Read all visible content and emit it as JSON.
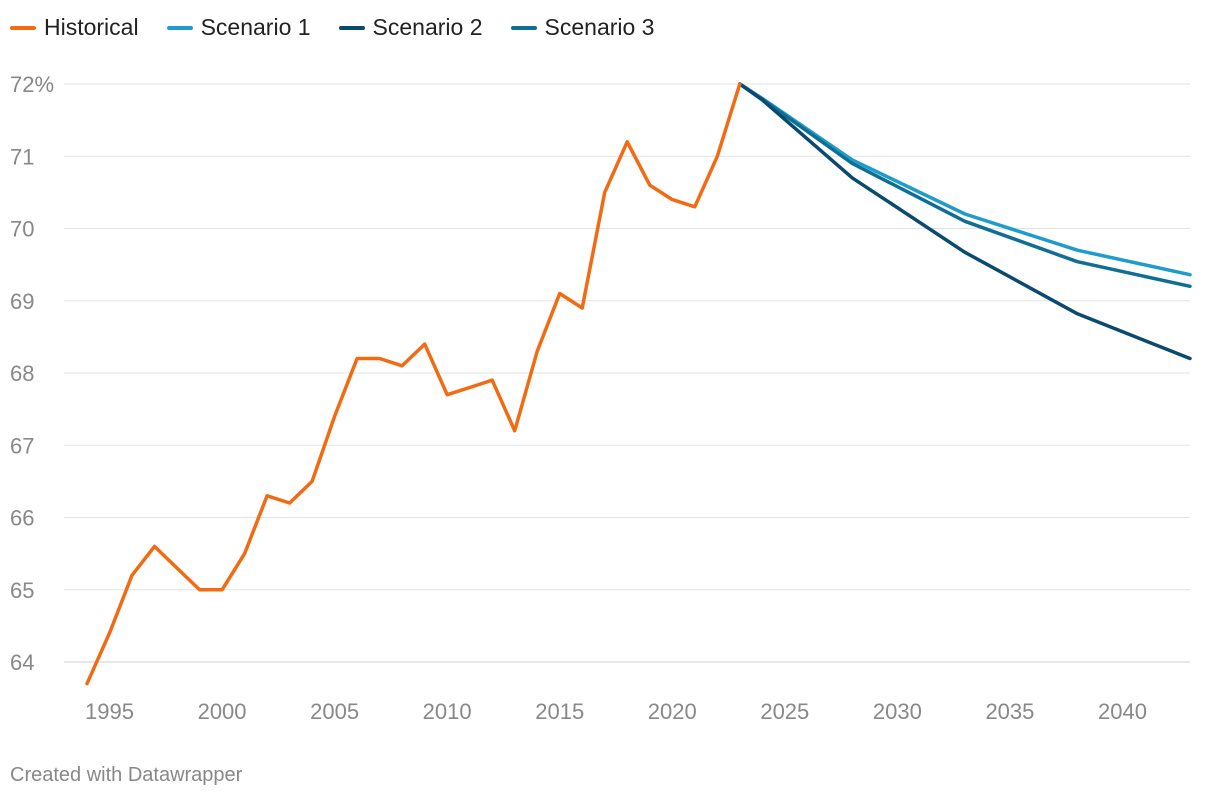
{
  "chart_data": {
    "type": "line",
    "title": "",
    "xlabel": "",
    "ylabel": "",
    "ylim": [
      63.6,
      72
    ],
    "xlim": [
      1994,
      2043
    ],
    "y_ticks": [
      64,
      65,
      66,
      67,
      68,
      69,
      70,
      71,
      72
    ],
    "y_tick_labels": [
      "64",
      "65",
      "66",
      "67",
      "68",
      "69",
      "70",
      "71",
      "72%"
    ],
    "x_ticks": [
      1995,
      2000,
      2005,
      2010,
      2015,
      2020,
      2025,
      2030,
      2035,
      2040
    ],
    "x_tick_labels": [
      "1995",
      "2000",
      "2005",
      "2010",
      "2015",
      "2020",
      "2025",
      "2030",
      "2035",
      "2040"
    ],
    "legend_position": "top-left",
    "grid": true,
    "series": [
      {
        "name": "Historical",
        "color": "#F26B12",
        "x": [
          1994,
          1995,
          1996,
          1997,
          1998,
          1999,
          2000,
          2001,
          2002,
          2003,
          2004,
          2005,
          2006,
          2007,
          2008,
          2009,
          2010,
          2011,
          2012,
          2013,
          2014,
          2015,
          2016,
          2017,
          2018,
          2019,
          2020,
          2021,
          2022,
          2023
        ],
        "values": [
          63.7,
          64.4,
          65.2,
          65.6,
          65.3,
          65.0,
          65.0,
          65.5,
          66.3,
          66.2,
          66.5,
          67.4,
          68.2,
          68.2,
          68.1,
          68.4,
          67.7,
          67.8,
          67.9,
          67.2,
          68.3,
          69.1,
          68.9,
          70.5,
          71.2,
          70.6,
          70.4,
          70.3,
          71.0,
          72.0
        ]
      },
      {
        "name": "Scenario 1",
        "color": "#1E9CCC",
        "x": [
          2023,
          2024,
          2028,
          2033,
          2038,
          2043
        ],
        "values": [
          72.0,
          71.8,
          70.95,
          70.2,
          69.7,
          69.36
        ]
      },
      {
        "name": "Scenario 2",
        "color": "#0B4A6F",
        "x": [
          2023,
          2024,
          2028,
          2033,
          2038,
          2043
        ],
        "values": [
          72.0,
          71.78,
          70.7,
          69.67,
          68.82,
          68.2
        ]
      },
      {
        "name": "Scenario 3",
        "color": "#0F6E93",
        "x": [
          2023,
          2024,
          2028,
          2033,
          2038,
          2043
        ],
        "values": [
          72.0,
          71.79,
          70.9,
          70.1,
          69.54,
          69.2
        ]
      }
    ]
  },
  "footer": {
    "credit": "Created with Datawrapper"
  }
}
